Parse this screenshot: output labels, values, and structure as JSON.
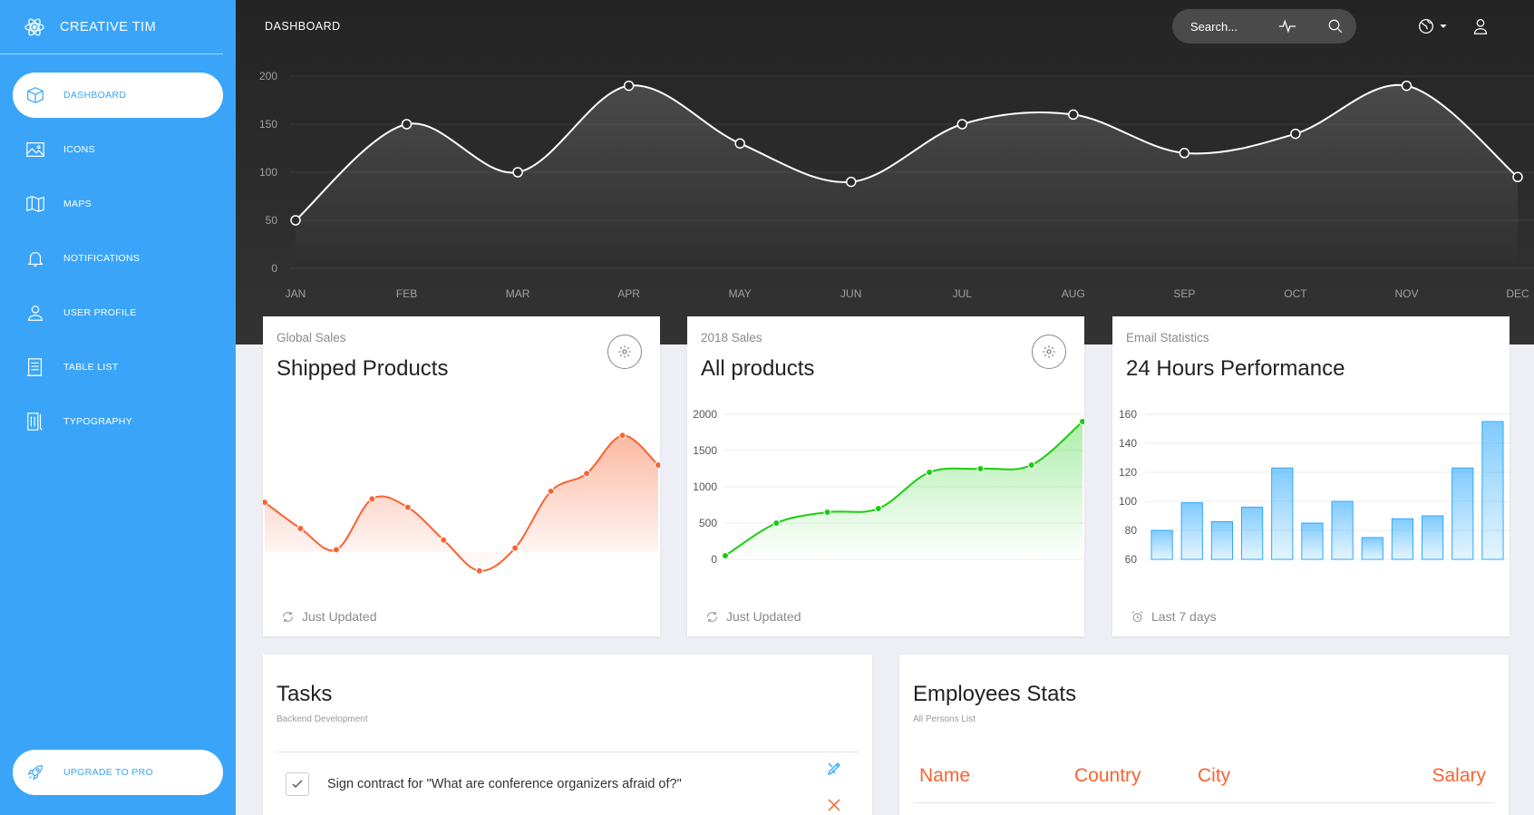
{
  "sidebar": {
    "brand": "Creative Tim",
    "items": [
      {
        "label": "Dashboard",
        "icon": "box-icon"
      },
      {
        "label": "Icons",
        "icon": "image-icon"
      },
      {
        "label": "Maps",
        "icon": "map-icon"
      },
      {
        "label": "Notifications",
        "icon": "bell-icon"
      },
      {
        "label": "User Profile",
        "icon": "user-icon"
      },
      {
        "label": "Table List",
        "icon": "list-icon"
      },
      {
        "label": "Typography",
        "icon": "typography-icon"
      }
    ],
    "active": "Dashboard",
    "upgrade_label": "Upgrade to PRO"
  },
  "header": {
    "title": "Dashboard",
    "search_placeholder": "Search..."
  },
  "colors": {
    "sidebar": "#3aa5f8",
    "orange": "#f96332",
    "green": "#18ce0f",
    "blue": "#2ca8ff",
    "dark": "#2b2b2b"
  },
  "chart_data": [
    {
      "type": "line",
      "categories": [
        "JAN",
        "FEB",
        "MAR",
        "APR",
        "MAY",
        "JUN",
        "JUL",
        "AUG",
        "SEP",
        "OCT",
        "NOV",
        "DEC"
      ],
      "values": [
        50,
        150,
        100,
        190,
        130,
        90,
        150,
        160,
        120,
        140,
        190,
        95
      ],
      "yticks": [
        0,
        50,
        100,
        150,
        200
      ],
      "ylim": [
        0,
        200
      ],
      "grid": true
    },
    {
      "type": "line",
      "category": "Global Sales",
      "title": "Shipped Products",
      "values": [
        542,
        480,
        430,
        550,
        530,
        453,
        380,
        434,
        568,
        610,
        700,
        630
      ],
      "footer": "Just Updated"
    },
    {
      "type": "line",
      "category": "2018 Sales",
      "title": "All products",
      "values": [
        50,
        500,
        650,
        700,
        1200,
        1250,
        1300,
        1900
      ],
      "yticks": [
        0,
        500,
        1000,
        1500,
        2000
      ],
      "ylim": [
        0,
        2000
      ],
      "footer": "Just Updated"
    },
    {
      "type": "bar",
      "category": "Email Statistics",
      "title": "24 Hours Performance",
      "values": [
        80,
        99,
        86,
        96,
        123,
        85,
        100,
        75,
        88,
        90,
        123,
        155
      ],
      "yticks": [
        60,
        80,
        100,
        120,
        140,
        160
      ],
      "ylim": [
        60,
        160
      ],
      "footer": "Last 7 days"
    }
  ],
  "tasks": {
    "title": "Tasks",
    "subtitle": "Backend Development",
    "items": [
      {
        "text": "Sign contract for \"What are conference organizers afraid of?\"",
        "checked": true
      }
    ]
  },
  "employees": {
    "title": "Employees Stats",
    "subtitle": "All Persons List",
    "columns": [
      "Name",
      "Country",
      "City",
      "Salary"
    ]
  }
}
